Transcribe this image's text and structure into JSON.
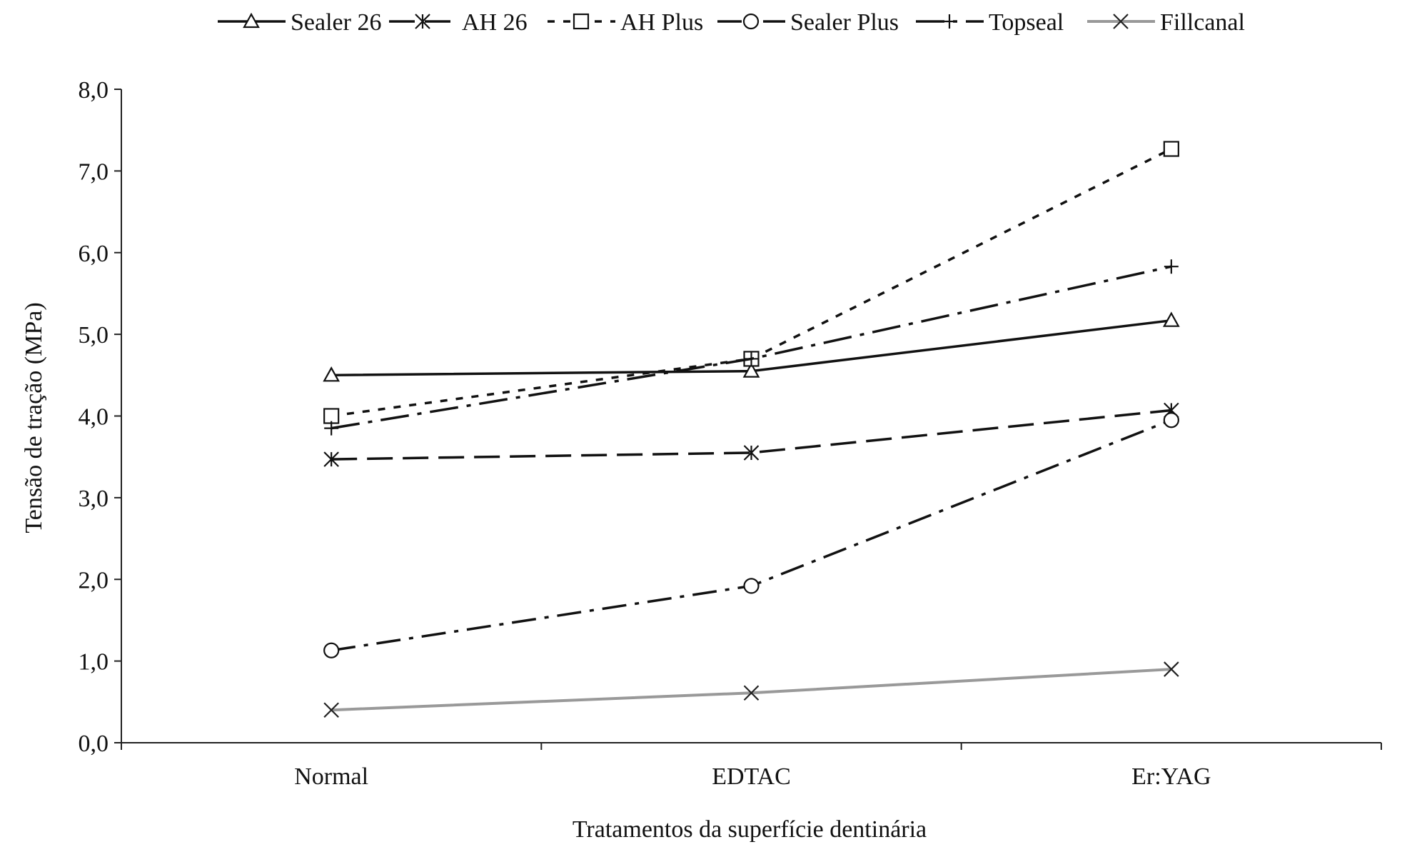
{
  "chart_data": {
    "type": "line",
    "title": "",
    "xlabel": "Tratamentos da superfície dentinária",
    "ylabel": "Tensão de tração (MPa)",
    "categories": [
      "Normal",
      "EDTAC",
      "Er:YAG"
    ],
    "ylim": [
      0,
      8
    ],
    "yticks": [
      "0,0",
      "1,0",
      "2,0",
      "3,0",
      "4,0",
      "5,0",
      "6,0",
      "7,0",
      "8,0"
    ],
    "grid": false,
    "legend_position": "top",
    "series": [
      {
        "name": "Sealer 26",
        "values": [
          4.5,
          4.55,
          5.17
        ],
        "marker": "triangle",
        "dash": "solid",
        "color": "#111111"
      },
      {
        "name": "AH 26",
        "values": [
          3.47,
          3.55,
          4.07
        ],
        "marker": "asterisk",
        "dash": "long-dash",
        "color": "#111111"
      },
      {
        "name": "AH Plus",
        "values": [
          4.0,
          4.7,
          7.27
        ],
        "marker": "square",
        "dash": "short-dash",
        "color": "#111111"
      },
      {
        "name": "Sealer Plus",
        "values": [
          1.13,
          1.92,
          3.95
        ],
        "marker": "circle",
        "dash": "dash-dot",
        "color": "#111111"
      },
      {
        "name": "Topseal",
        "values": [
          3.85,
          4.7,
          5.83
        ],
        "marker": "plus",
        "dash": "long-dash-dot",
        "color": "#111111"
      },
      {
        "name": "Fillcanal",
        "values": [
          0.4,
          0.61,
          0.9
        ],
        "marker": "cross",
        "dash": "solid",
        "color": "#999999"
      }
    ]
  }
}
